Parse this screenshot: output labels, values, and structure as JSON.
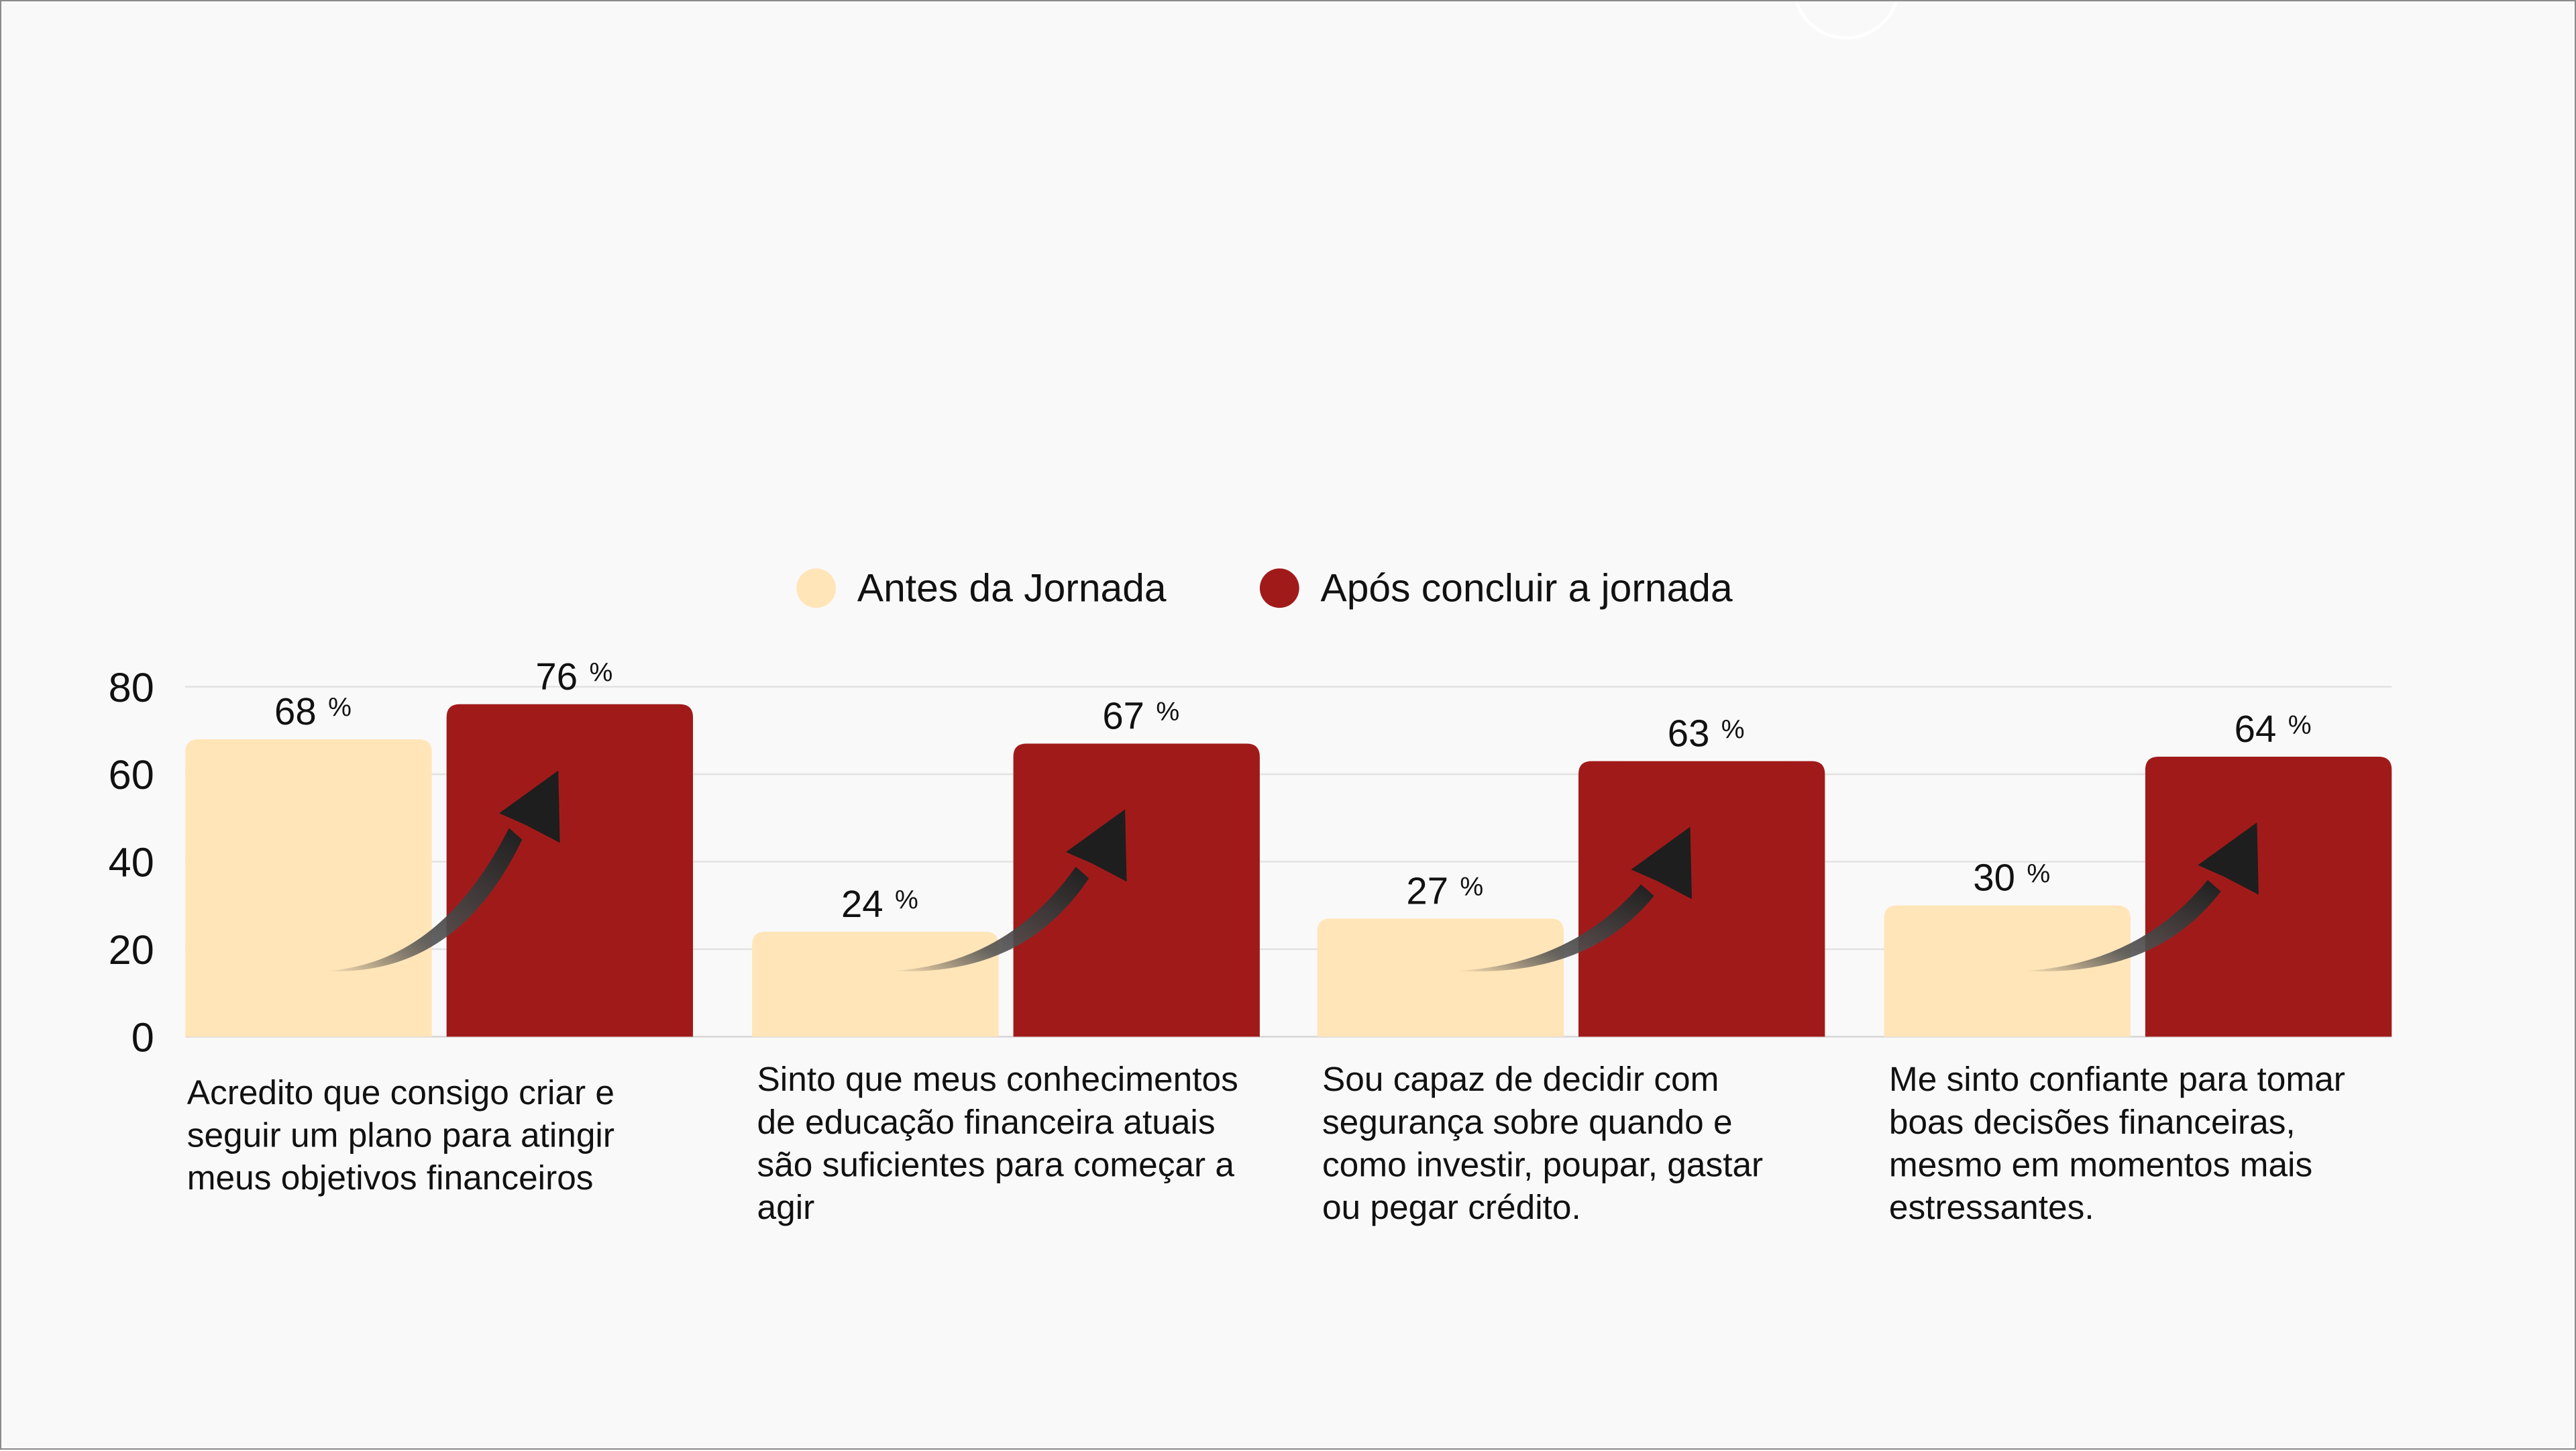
{
  "chart_data": {
    "type": "bar",
    "title": "",
    "xlabel": "",
    "ylabel": "",
    "ylim": [
      0,
      80
    ],
    "yticks": [
      0,
      20,
      40,
      60,
      80
    ],
    "grid": true,
    "legend_position": "top-center",
    "value_suffix": "%",
    "categories": [
      [
        "Acredito que consigo criar e",
        "seguir um plano para atingir",
        "meus objetivos financeiros"
      ],
      [
        "Sinto que meus conhecimentos",
        "de educação financeira atuais",
        "são suficientes para começar a",
        "agir"
      ],
      [
        "Sou capaz de decidir com",
        "segurança sobre quando e",
        "como investir, poupar, gastar",
        "ou pegar crédito."
      ],
      [
        "Me sinto confiante para tomar",
        "boas decisões financeiras,",
        "mesmo em momentos mais",
        "estressantes."
      ]
    ],
    "series": [
      {
        "name": "Antes da Jornada",
        "color": "#FFE5B8",
        "values": [
          68,
          24,
          27,
          30
        ]
      },
      {
        "name": "Após concluir a jornada",
        "color": "#A11A1A",
        "values": [
          76,
          67,
          63,
          64
        ]
      }
    ],
    "annotations": {
      "arrow_icon": "curved-up-arrow-icon",
      "arrow_color": "#2a2a2a"
    }
  }
}
